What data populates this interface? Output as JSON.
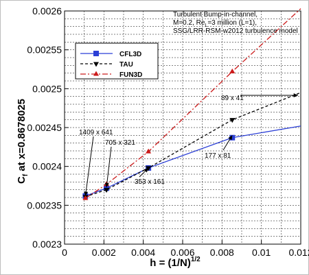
{
  "chart_data": {
    "type": "line",
    "title_lines": [
      "Turbulent Bump-in-channel,",
      "M=0.2, Re",
      "=3 million (L=1),",
      "SSG/LRR-RSM-w2012 turbulence model"
    ],
    "title_sub": "L",
    "xlabel_main": "h = (1/N)",
    "xlabel_sup": "1/2",
    "ylabel_main": "C",
    "ylabel_sub": "f",
    "ylabel_rest": " at x=0.8678025",
    "xlim": [
      0,
      0.012
    ],
    "ylim": [
      0.0023,
      0.0026
    ],
    "xticks": [
      0,
      0.002,
      0.004,
      0.006,
      0.008,
      0.01,
      0.012
    ],
    "xtick_labels": [
      "0",
      "0.002",
      "0.004",
      "0.006",
      "0.008",
      "0.01",
      "0.012"
    ],
    "yticks": [
      0.0023,
      0.00235,
      0.0024,
      0.00245,
      0.0025,
      0.00255,
      0.0026
    ],
    "ytick_labels": [
      "0.0023",
      "0.00235",
      "0.0024",
      "0.00245",
      "0.0025",
      "0.00255",
      "0.0026"
    ],
    "grid": true,
    "legend_position": "top-left",
    "series": [
      {
        "name": "CFL3D",
        "color": "#2b3fd6",
        "dash": "",
        "marker": "square",
        "x": [
          0.00106,
          0.00213,
          0.00426,
          0.00852,
          0.012
        ],
        "y": [
          0.002362,
          0.002372,
          0.002398,
          0.002437,
          0.002452
        ],
        "marked": [
          0,
          1,
          2,
          3
        ]
      },
      {
        "name": "TAU",
        "color": "#000000",
        "dash": "4,3",
        "marker": "triangle-down",
        "x": [
          0.00106,
          0.00213,
          0.00426,
          0.00852,
          0.012
        ],
        "y": [
          0.002361,
          0.00237,
          0.002398,
          0.00246,
          0.002495
        ],
        "marked": [
          0,
          1,
          2,
          3
        ]
      },
      {
        "name": "FUN3D",
        "color": "#cc1a1a",
        "dash": "8,3,2,3",
        "marker": "triangle-up",
        "x": [
          0.00106,
          0.00213,
          0.00426,
          0.00852,
          0.012
        ],
        "y": [
          0.002359,
          0.002377,
          0.002419,
          0.002522,
          0.002603
        ],
        "marked": [
          0,
          1,
          2,
          3
        ]
      }
    ],
    "annotations": [
      {
        "text": "1409 x 641",
        "at_x": 0.00106,
        "at_y": 0.002362
      },
      {
        "text": "705 x 321",
        "at_x": 0.00213,
        "at_y": 0.002373
      },
      {
        "text": "353 x 161",
        "at_x": 0.00426,
        "at_y": 0.002398
      },
      {
        "text": "177 x 81",
        "at_x": 0.00852,
        "at_y": 0.00244
      },
      {
        "text": "89 x 41",
        "at_x": 0.012,
        "at_y": 0.002505
      }
    ]
  }
}
